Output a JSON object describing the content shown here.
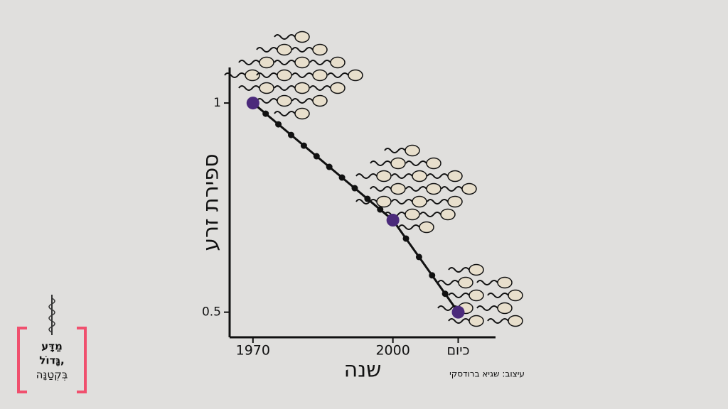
{
  "chart_data": {
    "type": "line",
    "x": [
      1970,
      2000,
      2014
    ],
    "series": [
      {
        "name": null,
        "color": "#4b2a7b",
        "values": [
          1,
          0.72,
          0.5
        ]
      }
    ],
    "xlim": [
      1965,
      2022
    ],
    "xticks": [
      1970,
      2000,
      {
        "value": 2014,
        "label": "כיום"
      }
    ],
    "ylim": [
      0.44,
      1.085
    ],
    "yticks": [
      1,
      0.5
    ],
    "xlabel": "שנה",
    "ylabel": "ספירת זרע"
  },
  "credit": "עיצוב: שגיא ברודסקי",
  "logo": {
    "lines": [
      "מַדָּע",
      "גָּדוֹל,",
      "בְּקְטַנָּה"
    ]
  }
}
